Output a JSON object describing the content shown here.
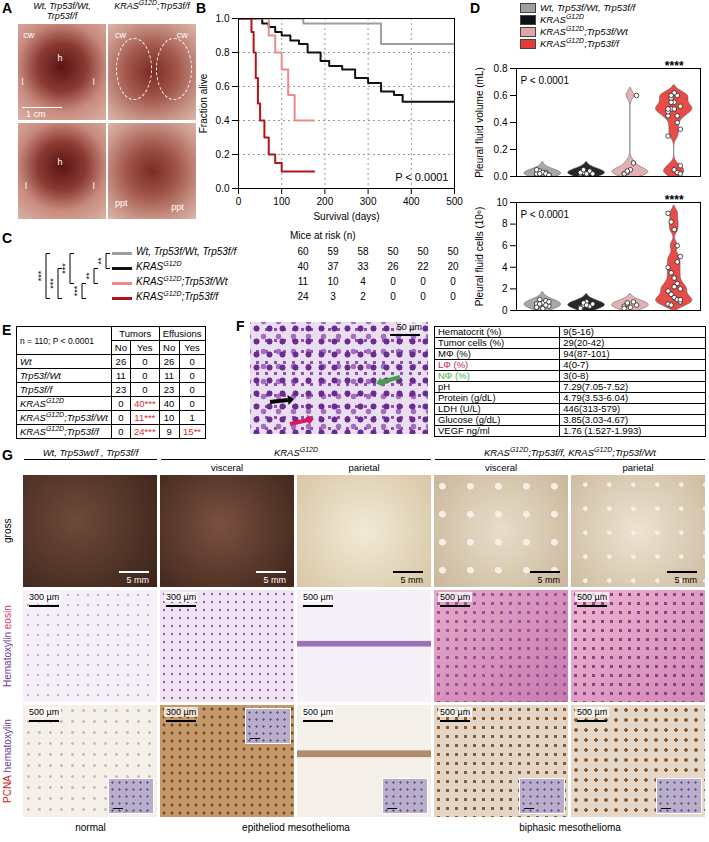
{
  "chart_data": [
    {
      "panel": "B",
      "type": "line",
      "x_label": "Survival (days)",
      "y_label": "Fraction alive",
      "annotation": "P < 0.0001",
      "xlim": [
        0,
        500
      ],
      "xticks": [
        0,
        100,
        200,
        300,
        400,
        500
      ],
      "ylim": [
        0,
        1
      ],
      "yticks": [
        {
          "value": 0,
          "label": "0.0"
        },
        {
          "value": 0.2,
          "label": "0.2"
        },
        {
          "value": 0.4,
          "label": "0.4"
        },
        {
          "value": 0.6,
          "label": "0.6"
        },
        {
          "value": 0.8,
          "label": "0.8"
        },
        {
          "value": 1,
          "label": "1.0"
        }
      ],
      "grid": true,
      "line_style": "step",
      "series": [
        {
          "name": "Wt, Trp53f/Wt, Trp53f/f",
          "color": "#9e9e9e",
          "x": [
            0,
            140,
            150,
            320,
            330,
            500
          ],
          "values": [
            1,
            1,
            0.97,
            0.97,
            0.85,
            0.85
          ]
        },
        {
          "name": "KRASG12D",
          "color": "#111111",
          "x": [
            0,
            40,
            55,
            70,
            85,
            100,
            120,
            140,
            160,
            190,
            210,
            240,
            270,
            300,
            330,
            360,
            380,
            500
          ],
          "values": [
            1,
            1,
            0.97,
            0.95,
            0.92,
            0.9,
            0.87,
            0.85,
            0.8,
            0.75,
            0.72,
            0.7,
            0.65,
            0.62,
            0.57,
            0.55,
            0.51,
            0.51
          ]
        },
        {
          "name": "KRASG12D;Trp53f/Wt",
          "color": "#ef8a8a",
          "x": [
            0,
            60,
            70,
            85,
            100,
            115,
            130,
            175
          ],
          "values": [
            1,
            1,
            0.9,
            0.8,
            0.7,
            0.55,
            0.4,
            0.4
          ]
        },
        {
          "name": "KRASG12D;Trp53f/f",
          "color": "#b3141b",
          "x": [
            0,
            25,
            30,
            35,
            40,
            45,
            50,
            60,
            70,
            85,
            100,
            175
          ],
          "values": [
            1,
            1,
            0.92,
            0.8,
            0.65,
            0.5,
            0.4,
            0.3,
            0.2,
            0.15,
            0.1,
            0.1
          ]
        }
      ]
    },
    {
      "panel": "D",
      "type": "violin",
      "y_label": "Pleural fluid volume (mL)",
      "annotation": "P < 0.0001",
      "significance": "****",
      "legend": "top",
      "tick_labels": "y",
      "categories": [
        "Wt, Trp53f/Wt, Trp53f/f",
        "KRASG12D",
        "KRASG12D;Trp53f/Wt",
        "KRASG12D;Trp53f/f"
      ],
      "colors": [
        "#9e9e9e",
        "#111111",
        "#e0a8a8",
        "#e53935"
      ],
      "ylim": [
        0,
        0.8
      ],
      "yticks": [
        {
          "value": 0,
          "label": "0.0"
        },
        {
          "value": 0.2,
          "label": "0.2"
        },
        {
          "value": 0.4,
          "label": "0.4"
        },
        {
          "value": 0.6,
          "label": "0.6"
        },
        {
          "value": 0.8,
          "label": "0.8"
        }
      ],
      "values": [
        [
          0.01,
          0.02,
          0.02,
          0.03,
          0.01,
          0.02,
          0.04,
          0.03,
          0.02,
          0.01,
          0.05,
          0.02
        ],
        [
          0.02,
          0.03,
          0.01,
          0.04,
          0.02,
          0.03,
          0.05,
          0.02
        ],
        [
          0.02,
          0.03,
          0.05,
          0.1,
          0.6,
          0.02,
          0.04
        ],
        [
          0.45,
          0.5,
          0.55,
          0.6,
          0.52,
          0.48,
          0.58,
          0.62,
          0.4,
          0.35,
          0.5,
          0.55,
          0.05,
          0.03,
          0.08,
          0.3,
          0.6,
          0.5,
          0.45,
          0.02
        ]
      ]
    },
    {
      "panel": "D",
      "type": "violin",
      "y_label": "Pleural fluid cells (10⁶)",
      "annotation": "P < 0.0001",
      "significance": "****",
      "tick_labels": "y",
      "categories": [
        "Wt, Trp53f/Wt, Trp53f/f",
        "KRASG12D",
        "KRASG12D;Trp53f/Wt",
        "KRASG12D;Trp53f/f"
      ],
      "colors": [
        "#9e9e9e",
        "#111111",
        "#e0a8a8",
        "#e53935"
      ],
      "ylim": [
        0,
        10
      ],
      "yticks": [
        0,
        2,
        4,
        6,
        8,
        10
      ],
      "values": [
        [
          0.3,
          0.5,
          0.7,
          0.9,
          0.4,
          0.6,
          1.0,
          0.2,
          0.5,
          0.8,
          0.3,
          0.6
        ],
        [
          0.3,
          0.5,
          0.8,
          0.4,
          0.6,
          0.2,
          0.7,
          0.5
        ],
        [
          0.4,
          0.6,
          0.3,
          0.8,
          0.5,
          0.2,
          0.7
        ],
        [
          9,
          8.2,
          7.5,
          6,
          5,
          4,
          3.5,
          3,
          2.5,
          2,
          1.8,
          1.5,
          1.2,
          1,
          0.8,
          0.6,
          0.5,
          2.2,
          4.5,
          1
        ]
      ]
    }
  ],
  "figure": {
    "A": {
      "scale_bar": "1 cm",
      "columns": [
        "Wt, Trp53f/Wt, Trp53f/f",
        "KRASG12D;Trp53f/f"
      ],
      "photos": [
        [
          "cw",
          "l",
          "h",
          "l"
        ],
        [
          "cw",
          "cw"
        ],
        [
          "h",
          "l",
          "l"
        ],
        [
          "ppt",
          "ppt"
        ]
      ]
    },
    "C": {
      "title": "Mice at risk (n)",
      "rows": [
        {
          "name": "Wt, Trp53f/Wt, Trp53f/f",
          "color": "#9e9e9e",
          "values": [
            60,
            59,
            58,
            50,
            50,
            50
          ]
        },
        {
          "name": "KRASG12D",
          "color": "#111111",
          "values": [
            40,
            37,
            33,
            26,
            22,
            20
          ]
        },
        {
          "name": "KRASG12D;Trp53f/Wt",
          "color": "#ef8a8a",
          "values": [
            11,
            10,
            4,
            0,
            0,
            0
          ]
        },
        {
          "name": "KRASG12D;Trp53f/f",
          "color": "#b3141b",
          "values": [
            24,
            3,
            2,
            0,
            0,
            0
          ]
        }
      ],
      "comparisons": [
        {
          "rows": [
            0,
            1
          ],
          "label": "**"
        },
        {
          "rows": [
            1,
            2
          ],
          "label": "**"
        },
        {
          "rows": [
            2,
            3
          ],
          "label": "***"
        },
        {
          "rows": [
            0,
            2
          ],
          "label": "***"
        },
        {
          "rows": [
            1,
            3
          ],
          "label": "***"
        },
        {
          "rows": [
            0,
            3
          ],
          "label": "***"
        }
      ]
    },
    "E": {
      "n_label": "n = 110; P < 0.0001",
      "header": [
        "Tumors",
        "Effusions"
      ],
      "subheader": [
        "No",
        "Yes",
        "No",
        "Yes"
      ],
      "rows": [
        [
          "Wt",
          26,
          0,
          26,
          0
        ],
        [
          "Trp53f/Wt",
          11,
          0,
          11,
          0
        ],
        [
          "Trp53f/f",
          23,
          0,
          23,
          0
        ],
        [
          "KRASG12D",
          0,
          "40***",
          40,
          0
        ],
        [
          "KRASG12D;Trp53f/Wt",
          0,
          "11***",
          10,
          1
        ],
        [
          "KRASG12D;Trp53f/f",
          0,
          "24***",
          9,
          "15**"
        ]
      ]
    },
    "F": {
      "scale_bar": "50 µm",
      "rows": [
        {
          "label": "Hematocrit (%)",
          "value": "9(5-16)"
        },
        {
          "label": "Tumor cells (%)",
          "value": "29(20-42)"
        },
        {
          "label": "MΦ (%)",
          "value": "94(87-101)"
        },
        {
          "label": "LΦ (%)",
          "value": "4(0-7)",
          "color": "#c2185b"
        },
        {
          "label": "NΦ (%)",
          "value": "3(0-8)",
          "color": "#4caf50"
        },
        {
          "label": "pH",
          "value": "7.29(7.05-7.52)"
        },
        {
          "label": "Protein (g/dL)",
          "value": "4.79(3.53-6.04)"
        },
        {
          "label": "LDH (U/L)",
          "value": "446(313-579)"
        },
        {
          "label": "Glucose (g/dL)",
          "value": "3.85(3.03-4.67)"
        },
        {
          "label": "VEGF ng/ml",
          "value": "1.76 (1.527-1.993)"
        }
      ]
    },
    "G": {
      "headers": [
        "Wt, Trp53wt/f , Trp53f/f",
        "KRASG12D",
        null,
        "KRASG12D;Trp53f/f, KRASG12D;Trp53f/Wt",
        null
      ],
      "subheaders": [
        null,
        "visceral",
        "parietal",
        "visceral",
        "parietal"
      ],
      "row_labels": [
        [
          {
            "text": "gross"
          }
        ],
        [
          {
            "text": "Hematoxylin",
            "color": "#6a3d9a"
          },
          {
            "text": "eosin",
            "color": "#d6336c"
          }
        ],
        [
          {
            "text": "PCNA",
            "color": "#c62828"
          },
          {
            "text": "hematoxylin",
            "color": "#6a3d9a"
          }
        ]
      ],
      "scale_bars": [
        [
          "5 mm",
          "5 mm",
          "5 mm",
          "5 mm",
          "5 mm"
        ],
        [
          "300 µm",
          "300 µm",
          "500 µm",
          "500 µm",
          "500 µm"
        ],
        [
          "500 µm",
          "300 µm",
          "500 µm",
          "500 µm",
          "500 µm"
        ]
      ],
      "footers": [
        "normal",
        "epitheliod mesothelioma",
        null,
        "biphasic mesothelioma",
        null
      ]
    }
  }
}
